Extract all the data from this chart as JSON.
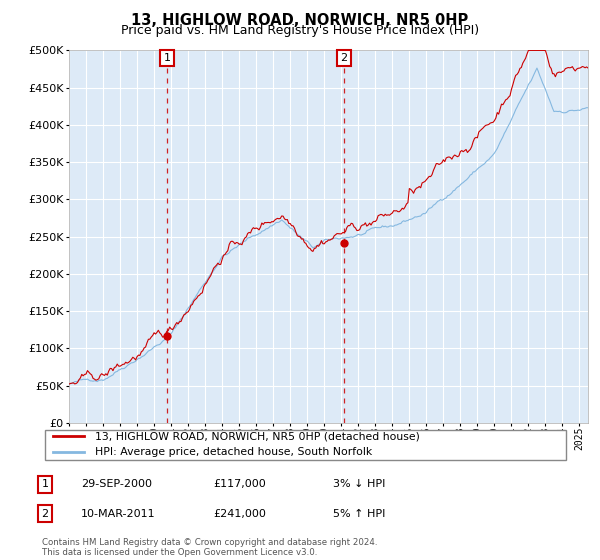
{
  "title": "13, HIGHLOW ROAD, NORWICH, NR5 0HP",
  "subtitle": "Price paid vs. HM Land Registry's House Price Index (HPI)",
  "ylim": [
    0,
    500000
  ],
  "yticks": [
    0,
    50000,
    100000,
    150000,
    200000,
    250000,
    300000,
    350000,
    400000,
    450000,
    500000
  ],
  "hpi_color": "#85b8e0",
  "price_color": "#cc0000",
  "bg_color": "#ddeaf7",
  "annotation1": {
    "label": "1",
    "date": "29-SEP-2000",
    "price": 117000,
    "hpi_note": "3% ↓ HPI"
  },
  "annotation2": {
    "label": "2",
    "date": "10-MAR-2011",
    "price": 241000,
    "hpi_note": "5% ↑ HPI"
  },
  "legend_line1": "13, HIGHLOW ROAD, NORWICH, NR5 0HP (detached house)",
  "legend_line2": "HPI: Average price, detached house, South Norfolk",
  "footer": "Contains HM Land Registry data © Crown copyright and database right 2024.\nThis data is licensed under the Open Government Licence v3.0.",
  "xstart": 1995.0,
  "xend": 2025.5,
  "sale1_t": 2000.75,
  "sale1_v": 117000,
  "sale2_t": 2011.17,
  "sale2_v": 241000
}
